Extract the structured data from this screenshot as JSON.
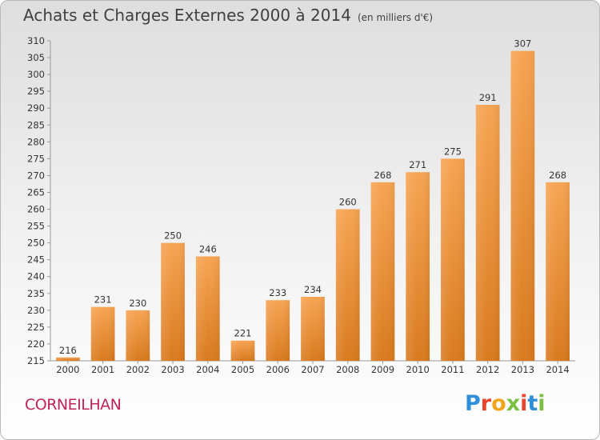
{
  "chart_data": {
    "type": "bar",
    "title": "Achats et Charges Externes 2000 à 2014",
    "subtitle": "(en milliers d'€)",
    "categories": [
      "2000",
      "2001",
      "2002",
      "2003",
      "2004",
      "2005",
      "2006",
      "2007",
      "2008",
      "2009",
      "2010",
      "2011",
      "2012",
      "2013",
      "2014"
    ],
    "values": [
      216,
      231,
      230,
      250,
      246,
      221,
      233,
      234,
      260,
      268,
      271,
      275,
      291,
      307,
      268
    ],
    "ylim": [
      215,
      310
    ],
    "ytick_step": 5,
    "grid": false,
    "bar_color": "#f0943a"
  },
  "footer": {
    "place": "CORNEILHAN",
    "logo_letters": [
      {
        "ch": "P",
        "color": "#2f8fd8"
      },
      {
        "ch": "r",
        "color": "#e8452d"
      },
      {
        "ch": "o",
        "color": "#f2a51c"
      },
      {
        "ch": "x",
        "color": "#7bc043"
      },
      {
        "ch": "i",
        "color": "#e8452d"
      },
      {
        "ch": "t",
        "color": "#2f8fd8"
      },
      {
        "ch": "i",
        "color": "#7bc043"
      }
    ]
  }
}
